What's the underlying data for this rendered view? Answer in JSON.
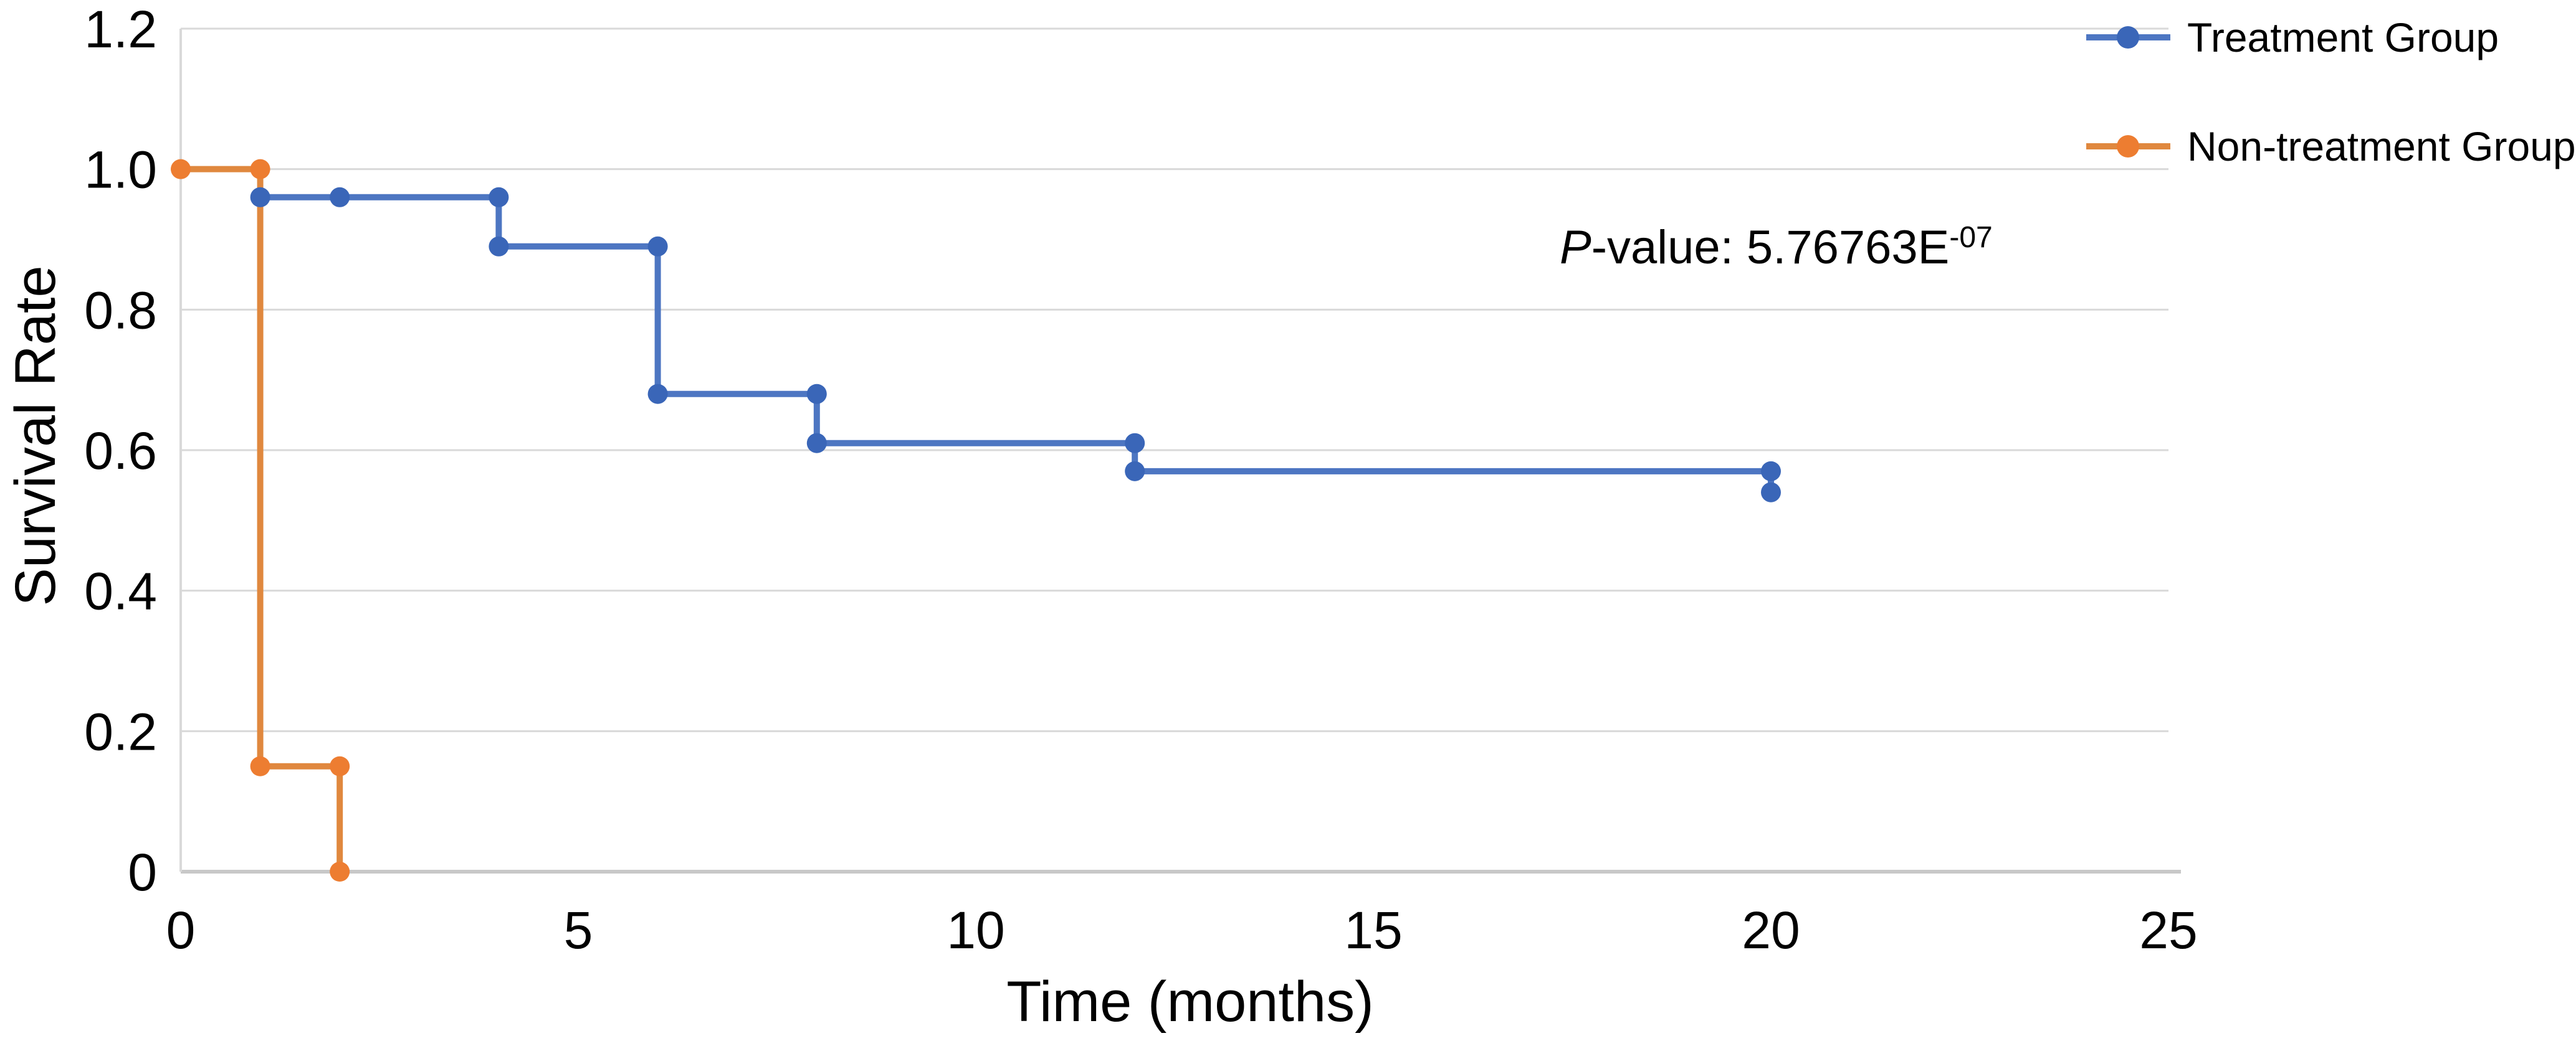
{
  "chart_data": {
    "type": "line",
    "subtype": "kaplan-meier-step",
    "title": "",
    "xlabel": "Time (months)",
    "ylabel": "Survival Rate",
    "xlim": [
      0,
      25
    ],
    "ylim": [
      0,
      1.2
    ],
    "grid": "horizontal",
    "legend_position": "top-right",
    "x_tick_values": [
      0,
      5,
      10,
      15,
      20,
      25
    ],
    "x_tick_labels": [
      "0",
      "5",
      "10",
      "15",
      "20",
      "25"
    ],
    "y_tick_values": [
      0,
      0.2,
      0.4,
      0.6,
      0.8,
      1.0,
      1.2
    ],
    "y_tick_labels": [
      "0",
      "0.2",
      "0.4",
      "0.6",
      "0.8",
      "1.0",
      "1.2"
    ],
    "series": [
      {
        "name": "Treatment Group",
        "line_color": "#4D76C2",
        "marker_color": "#3A66B8",
        "marker": "circle",
        "points": [
          [
            1,
            0.96
          ],
          [
            2,
            0.96
          ],
          [
            4,
            0.96
          ],
          [
            4,
            0.89
          ],
          [
            6,
            0.89
          ],
          [
            6,
            0.68
          ],
          [
            8,
            0.68
          ],
          [
            8,
            0.61
          ],
          [
            12,
            0.61
          ],
          [
            12,
            0.57
          ],
          [
            20,
            0.57
          ],
          [
            20,
            0.54
          ]
        ]
      },
      {
        "name": "Non-treatment Group",
        "line_color": "#E0883E",
        "marker_color": "#ED7D31",
        "marker": "circle",
        "points": [
          [
            0,
            1.0
          ],
          [
            1,
            1.0
          ],
          [
            1,
            0.15
          ],
          [
            2,
            0.15
          ],
          [
            2,
            0
          ]
        ]
      }
    ],
    "annotation": {
      "p_italic": "P",
      "rest": "-value: 5.76763E",
      "superscript": "-07"
    }
  },
  "colors": {
    "background": "#FFFFFF",
    "gridline": "#D9D9D9",
    "axis_line": "#C8C8C8",
    "text": "#000000",
    "treatment_blue": "#4472C4",
    "non_treatment_orange": "#ED7D31"
  }
}
